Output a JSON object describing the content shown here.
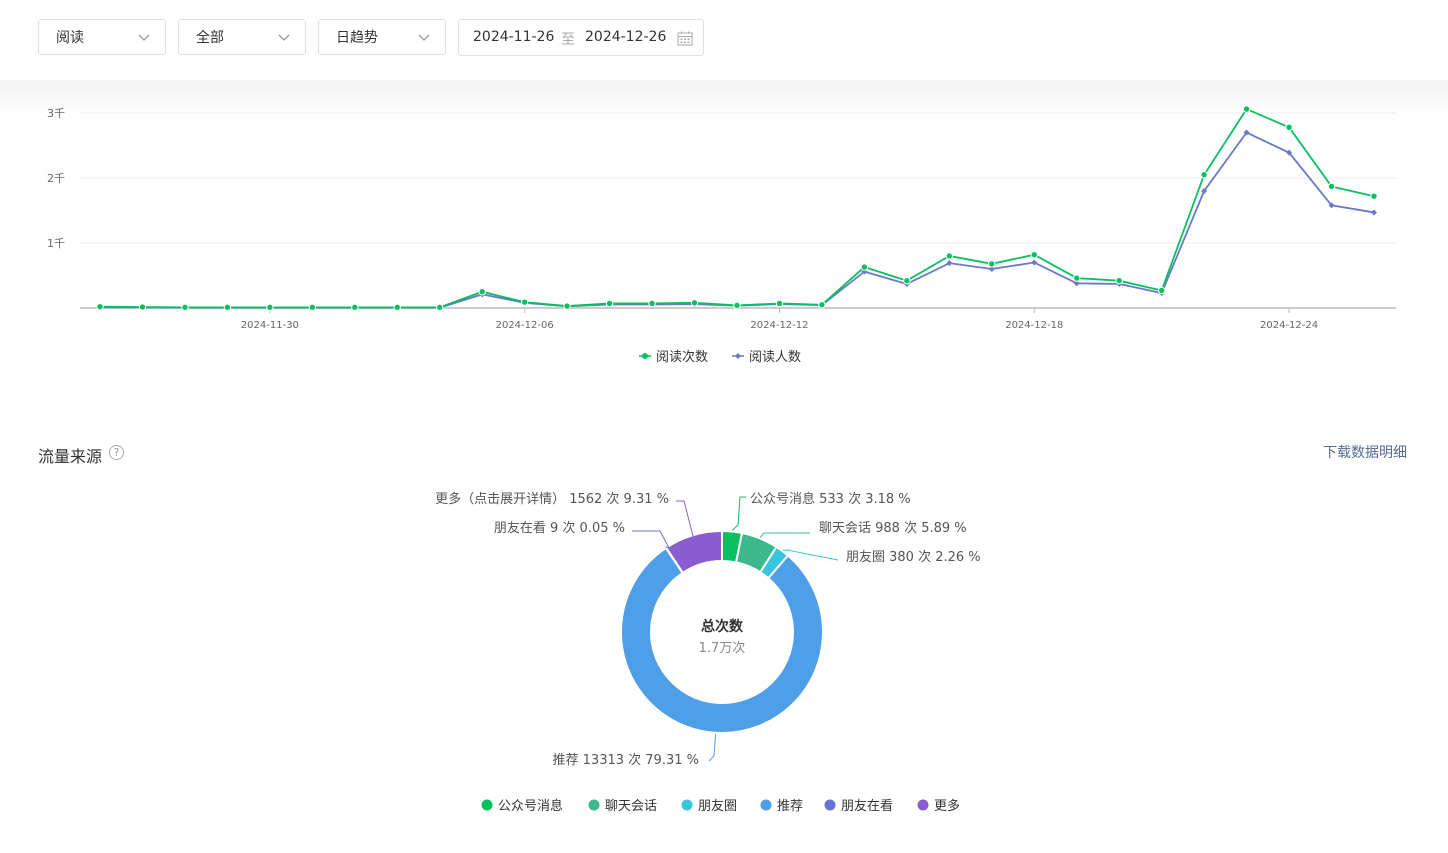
{
  "filters": {
    "metric": "阅读",
    "scope": "全部",
    "granularity": "日趋势",
    "date_start": "2024-11-26",
    "date_sep": "至",
    "date_end": "2024-12-26"
  },
  "colors": {
    "reads": "#07c160",
    "readers": "#6b79c9",
    "src_gzh": "#07c160",
    "src_chat": "#3cb98a",
    "src_moments": "#39c5dd",
    "src_recommend": "#4e9fe8",
    "src_friends": "#6871d4",
    "src_more": "#8c5cd1"
  },
  "chart_data": [
    {
      "type": "line",
      "y_tick_labels": [
        "1千",
        "2千",
        "3千"
      ],
      "y_ticks": [
        1000,
        2000,
        3000
      ],
      "ylim": [
        0,
        3300
      ],
      "x_tick_labels": [
        "2024-11-30",
        "2024-12-06",
        "2024-12-12",
        "2024-12-18",
        "2024-12-24"
      ],
      "x": [
        "2024-11-26",
        "2024-11-27",
        "2024-11-28",
        "2024-11-29",
        "2024-11-30",
        "2024-12-01",
        "2024-12-02",
        "2024-12-03",
        "2024-12-04",
        "2024-12-05",
        "2024-12-06",
        "2024-12-07",
        "2024-12-08",
        "2024-12-09",
        "2024-12-10",
        "2024-12-11",
        "2024-12-12",
        "2024-12-13",
        "2024-12-14",
        "2024-12-15",
        "2024-12-16",
        "2024-12-17",
        "2024-12-18",
        "2024-12-19",
        "2024-12-20",
        "2024-12-21",
        "2024-12-22",
        "2024-12-23",
        "2024-12-24",
        "2024-12-25",
        "2024-12-26"
      ],
      "series": [
        {
          "name": "阅读次数",
          "values": [
            20,
            15,
            10,
            10,
            10,
            10,
            10,
            10,
            10,
            250,
            90,
            30,
            70,
            70,
            80,
            40,
            70,
            50,
            630,
            420,
            800,
            680,
            820,
            460,
            420,
            270,
            2050,
            3060,
            2780,
            1870,
            1720
          ]
        },
        {
          "name": "阅读人数",
          "values": [
            10,
            10,
            5,
            5,
            5,
            5,
            5,
            5,
            5,
            210,
            80,
            25,
            55,
            55,
            60,
            35,
            60,
            45,
            560,
            370,
            690,
            600,
            700,
            380,
            370,
            230,
            1800,
            2700,
            2390,
            1580,
            1470
          ]
        }
      ],
      "legend_position": "bottom"
    },
    {
      "type": "pie",
      "center_title": "总次数",
      "center_value": "1.7万次",
      "slices": [
        {
          "name": "公众号消息",
          "label": "公众号消息 533 次 3.18 %",
          "value": 533,
          "percent": 3.18
        },
        {
          "name": "聊天会话",
          "label": "聊天会话 988 次 5.89 %",
          "value": 988,
          "percent": 5.89
        },
        {
          "name": "朋友圈",
          "label": "朋友圈 380 次 2.26 %",
          "value": 380,
          "percent": 2.26
        },
        {
          "name": "推荐",
          "label": "推荐 13313 次 79.31 %",
          "value": 13313,
          "percent": 79.31
        },
        {
          "name": "朋友在看",
          "label": "朋友在看 9 次 0.05 %",
          "value": 9,
          "percent": 0.05
        },
        {
          "name": "更多",
          "label": "更多（点击展开详情） 1562 次 9.31 %",
          "value": 1562,
          "percent": 9.31
        }
      ],
      "legend_position": "bottom"
    }
  ],
  "traffic": {
    "title": "流量来源",
    "help": "?",
    "download": "下载数据明细"
  }
}
